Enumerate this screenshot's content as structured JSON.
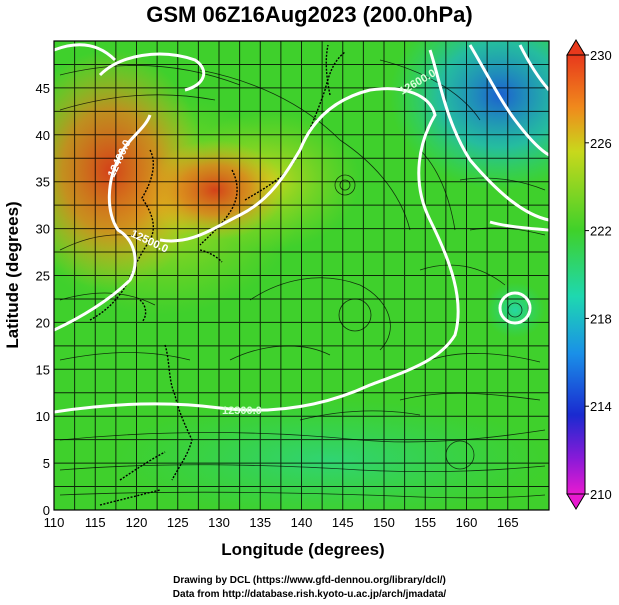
{
  "title": "GSM 06Z16Aug2023 (200.0hPa)",
  "xaxis": {
    "label": "Longitude (degrees)",
    "range": [
      110,
      170
    ],
    "ticks": [
      "110",
      "115",
      "120",
      "125",
      "130",
      "135",
      "140",
      "145",
      "150",
      "155",
      "160",
      "165"
    ]
  },
  "yaxis": {
    "label": "Latitude  (degrees)",
    "range": [
      0,
      50
    ],
    "ticks": [
      "0",
      "5",
      "10",
      "15",
      "20",
      "25",
      "30",
      "35",
      "40",
      "45"
    ]
  },
  "colorbar": {
    "labels": [
      "230",
      "226",
      "222",
      "218",
      "214",
      "210"
    ],
    "range": [
      210,
      230
    ]
  },
  "contours": {
    "label_12400": "12400.0",
    "label_12500": "12500.0",
    "label_12300": "12300.0",
    "label_12600": "12600.0"
  },
  "colors": {
    "warm": "#d8401a",
    "mid": "#42d12a",
    "cold": "#1e5bd0",
    "contour": "#ffffff"
  },
  "credits": {
    "line1": "Drawing by DCL (https://www.gfd-dennou.org/library/dcl/)",
    "line2": "Data from http://database.rish.kyoto-u.ac.jp/arch/jmadata/"
  }
}
